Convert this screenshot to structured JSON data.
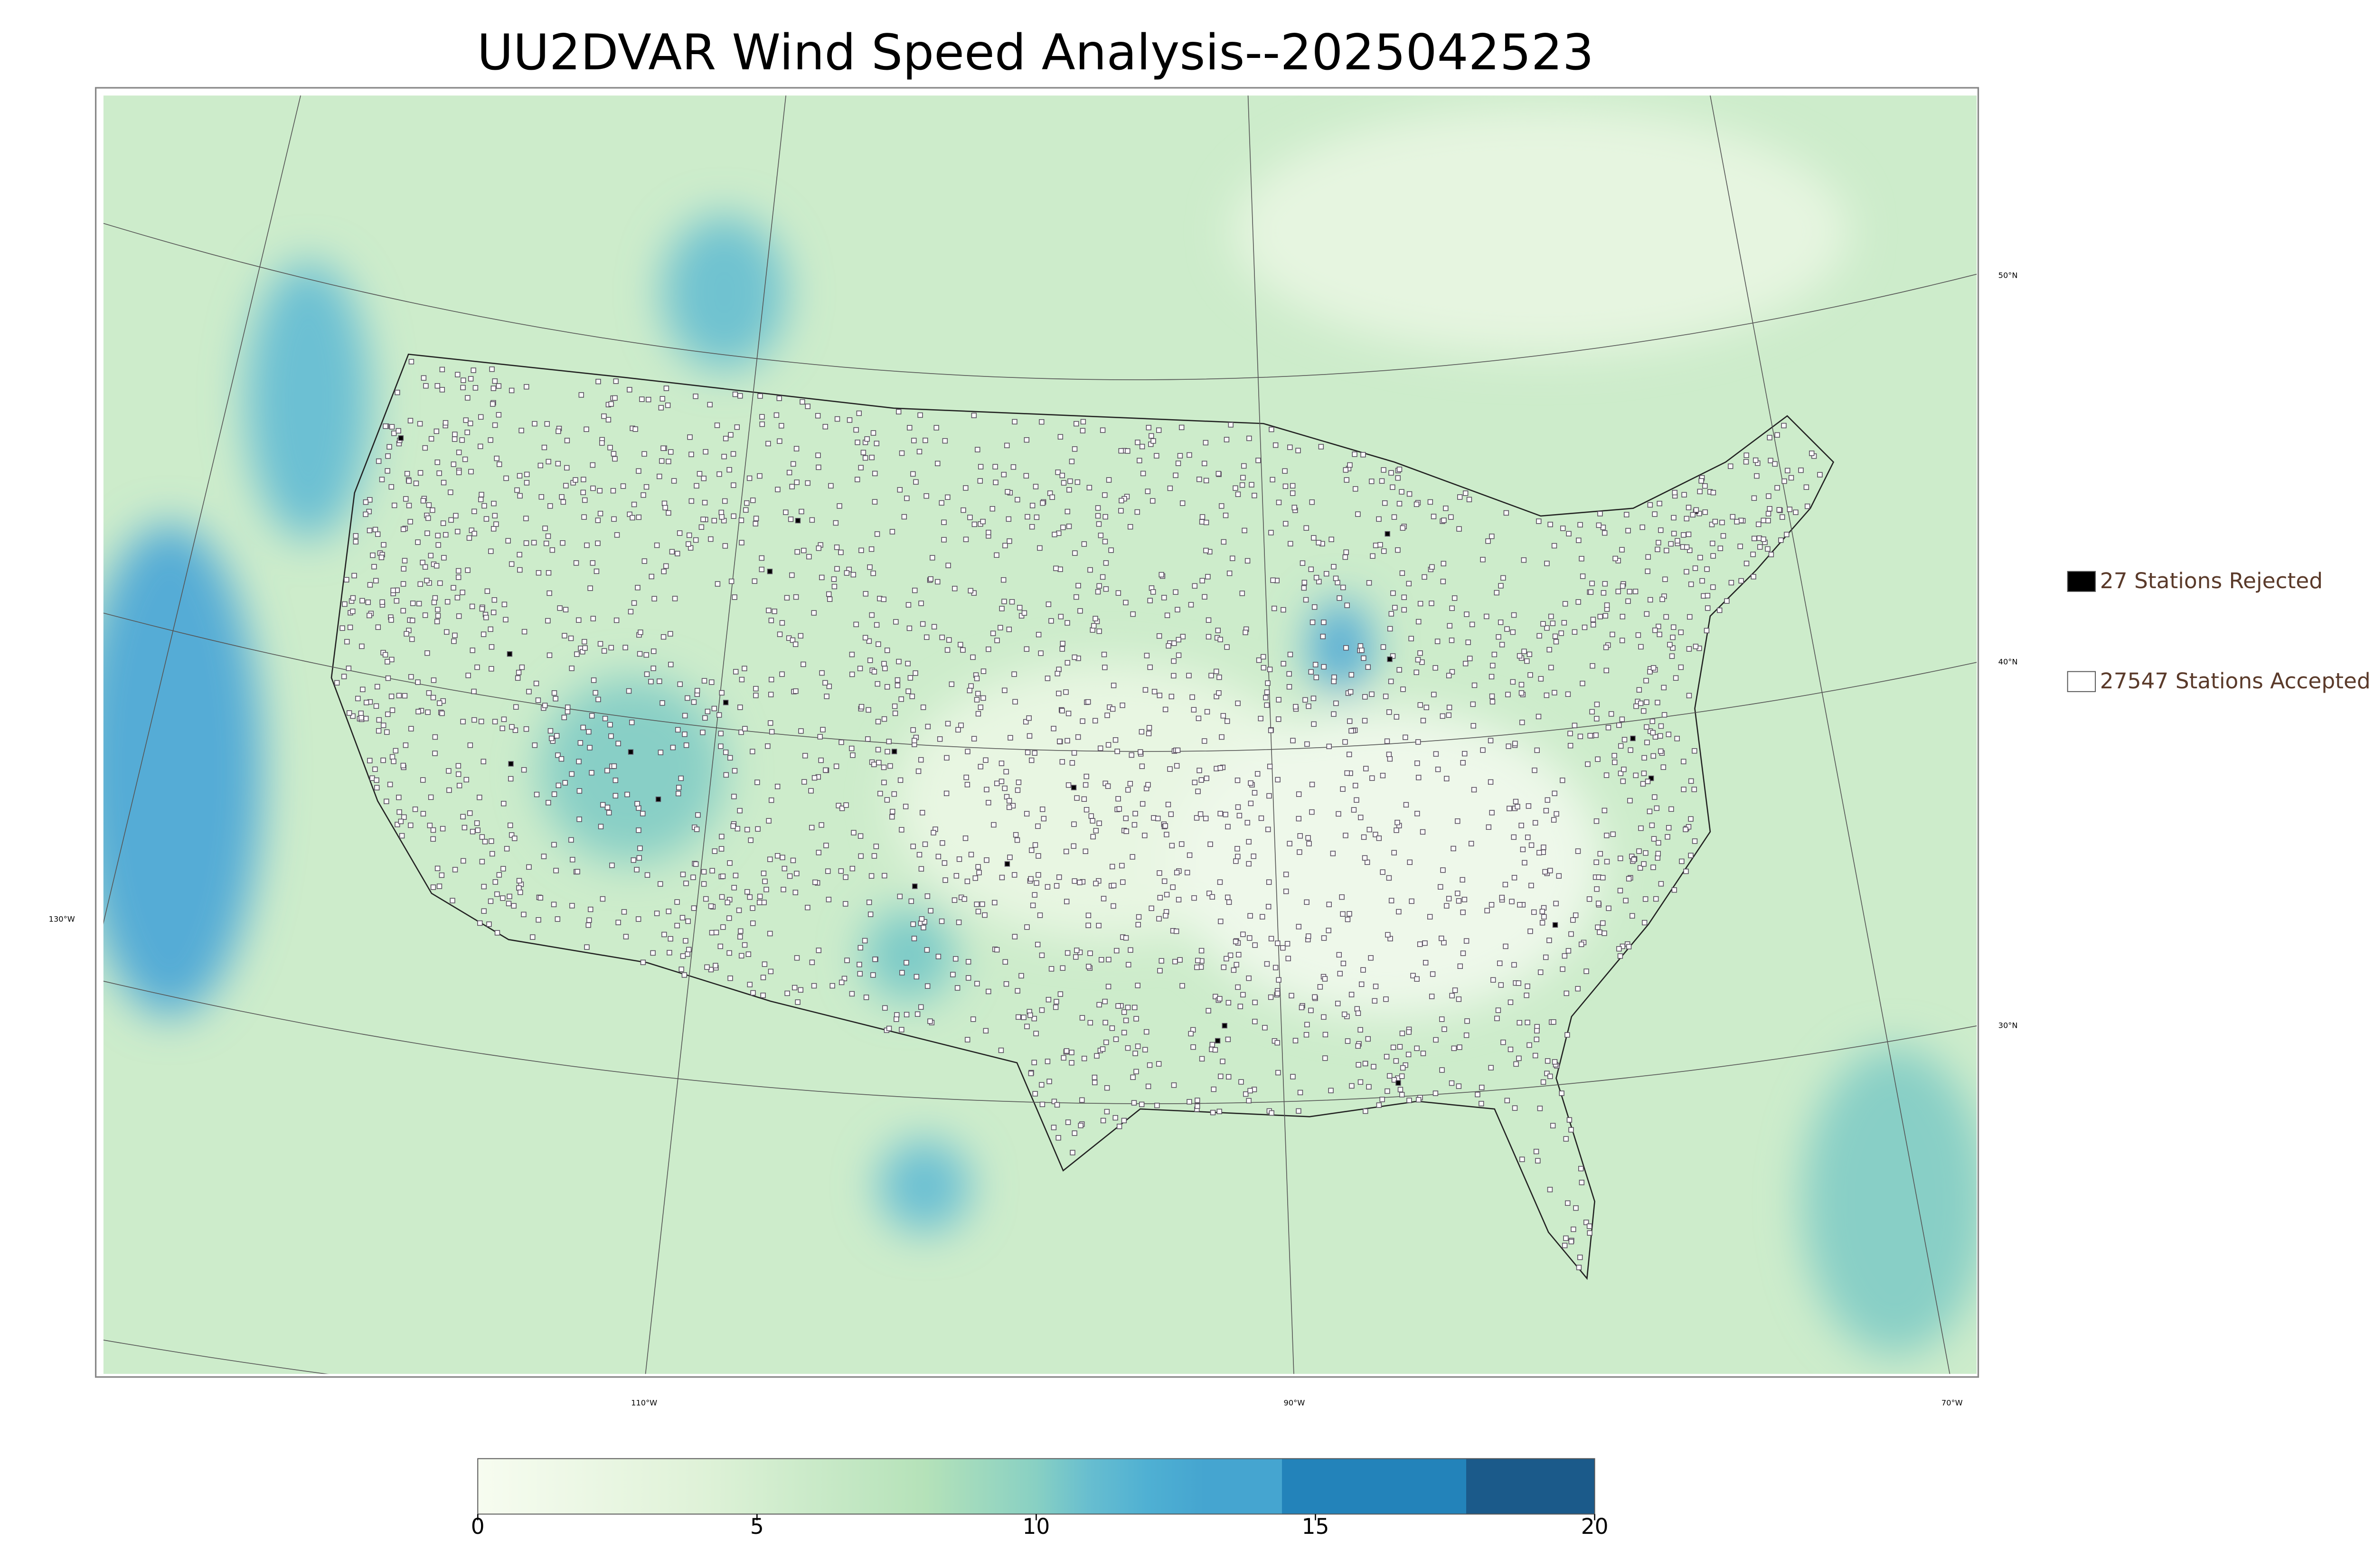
{
  "title": "UU2DVAR Wind Speed Analysis--2025042523",
  "legend": [
    {
      "label": "27 Stations Rejected",
      "fill": "#000000"
    },
    {
      "label": "27547 Stations Accepted",
      "fill": "#ffffff"
    }
  ],
  "graticule_labels": {
    "lat": [
      "50°N",
      "40°N",
      "30°N"
    ],
    "lon": [
      "130°W",
      "110°W",
      "90°W",
      "70°W"
    ]
  },
  "colorbar": {
    "lim": [
      0,
      20
    ],
    "ticks": [
      0,
      5,
      10,
      15,
      20
    ]
  }
}
